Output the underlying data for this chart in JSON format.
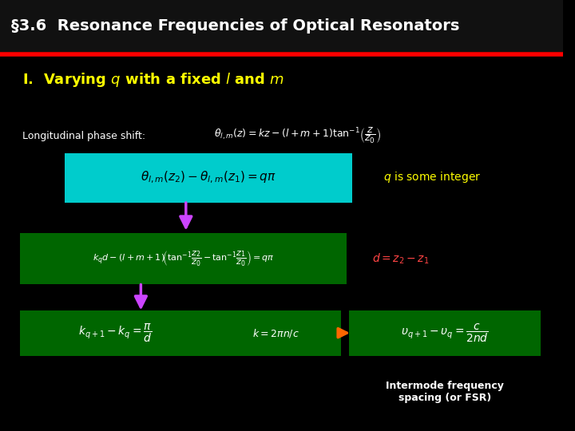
{
  "title": "§3.6  Resonance Frequencies of Optical Resonators",
  "subtitle": "I.  Varying $q$ with a fixed $l$ and $m$",
  "bg_color": "#000000",
  "title_color": "#ffffff",
  "subtitle_color": "#ffff00",
  "red_line_color": "#ff0000",
  "label_color": "#ffffff",
  "label_text": "Longitudinal phase shift:",
  "eq1": "$\\theta_{l,m}(z) = kz - (l+m+1)\\tan^{-1}\\!\\left(\\dfrac{z}{z_0}\\right)$",
  "eq2_box_color": "#00cccc",
  "eq2": "$\\theta_{l,m}(z_2) - \\theta_{l,m}(z_1) = q\\pi$",
  "eq2_note": "$q$ is some integer",
  "eq2_note_color": "#ffff00",
  "arrow1_color": "#cc44ff",
  "eq3_box_color": "#006600",
  "eq3": "$k_q d - (l+m+1)\\!\\left(\\tan^{-1}\\!\\dfrac{z_2}{z_0} - \\tan^{-1}\\!\\dfrac{z_1}{z_0}\\right) = q\\pi$",
  "eq3_note": "$d = z_2 - z_1$",
  "eq3_note_color": "#ff4444",
  "arrow2_color": "#cc44ff",
  "eq4_box_color": "#006600",
  "eq4": "$k_{q+1} - k_q = \\dfrac{\\pi}{d}$",
  "eq4b": "$k = 2\\pi n/c$",
  "arrow3_color": "#ff6600",
  "eq5_box_color": "#006600",
  "eq5": "$\\upsilon_{q+1} - \\upsilon_q = \\dfrac{c}{2nd}$",
  "footer_note": "Intermode frequency\nspacing (or FSR)",
  "footer_color": "#ffffff"
}
